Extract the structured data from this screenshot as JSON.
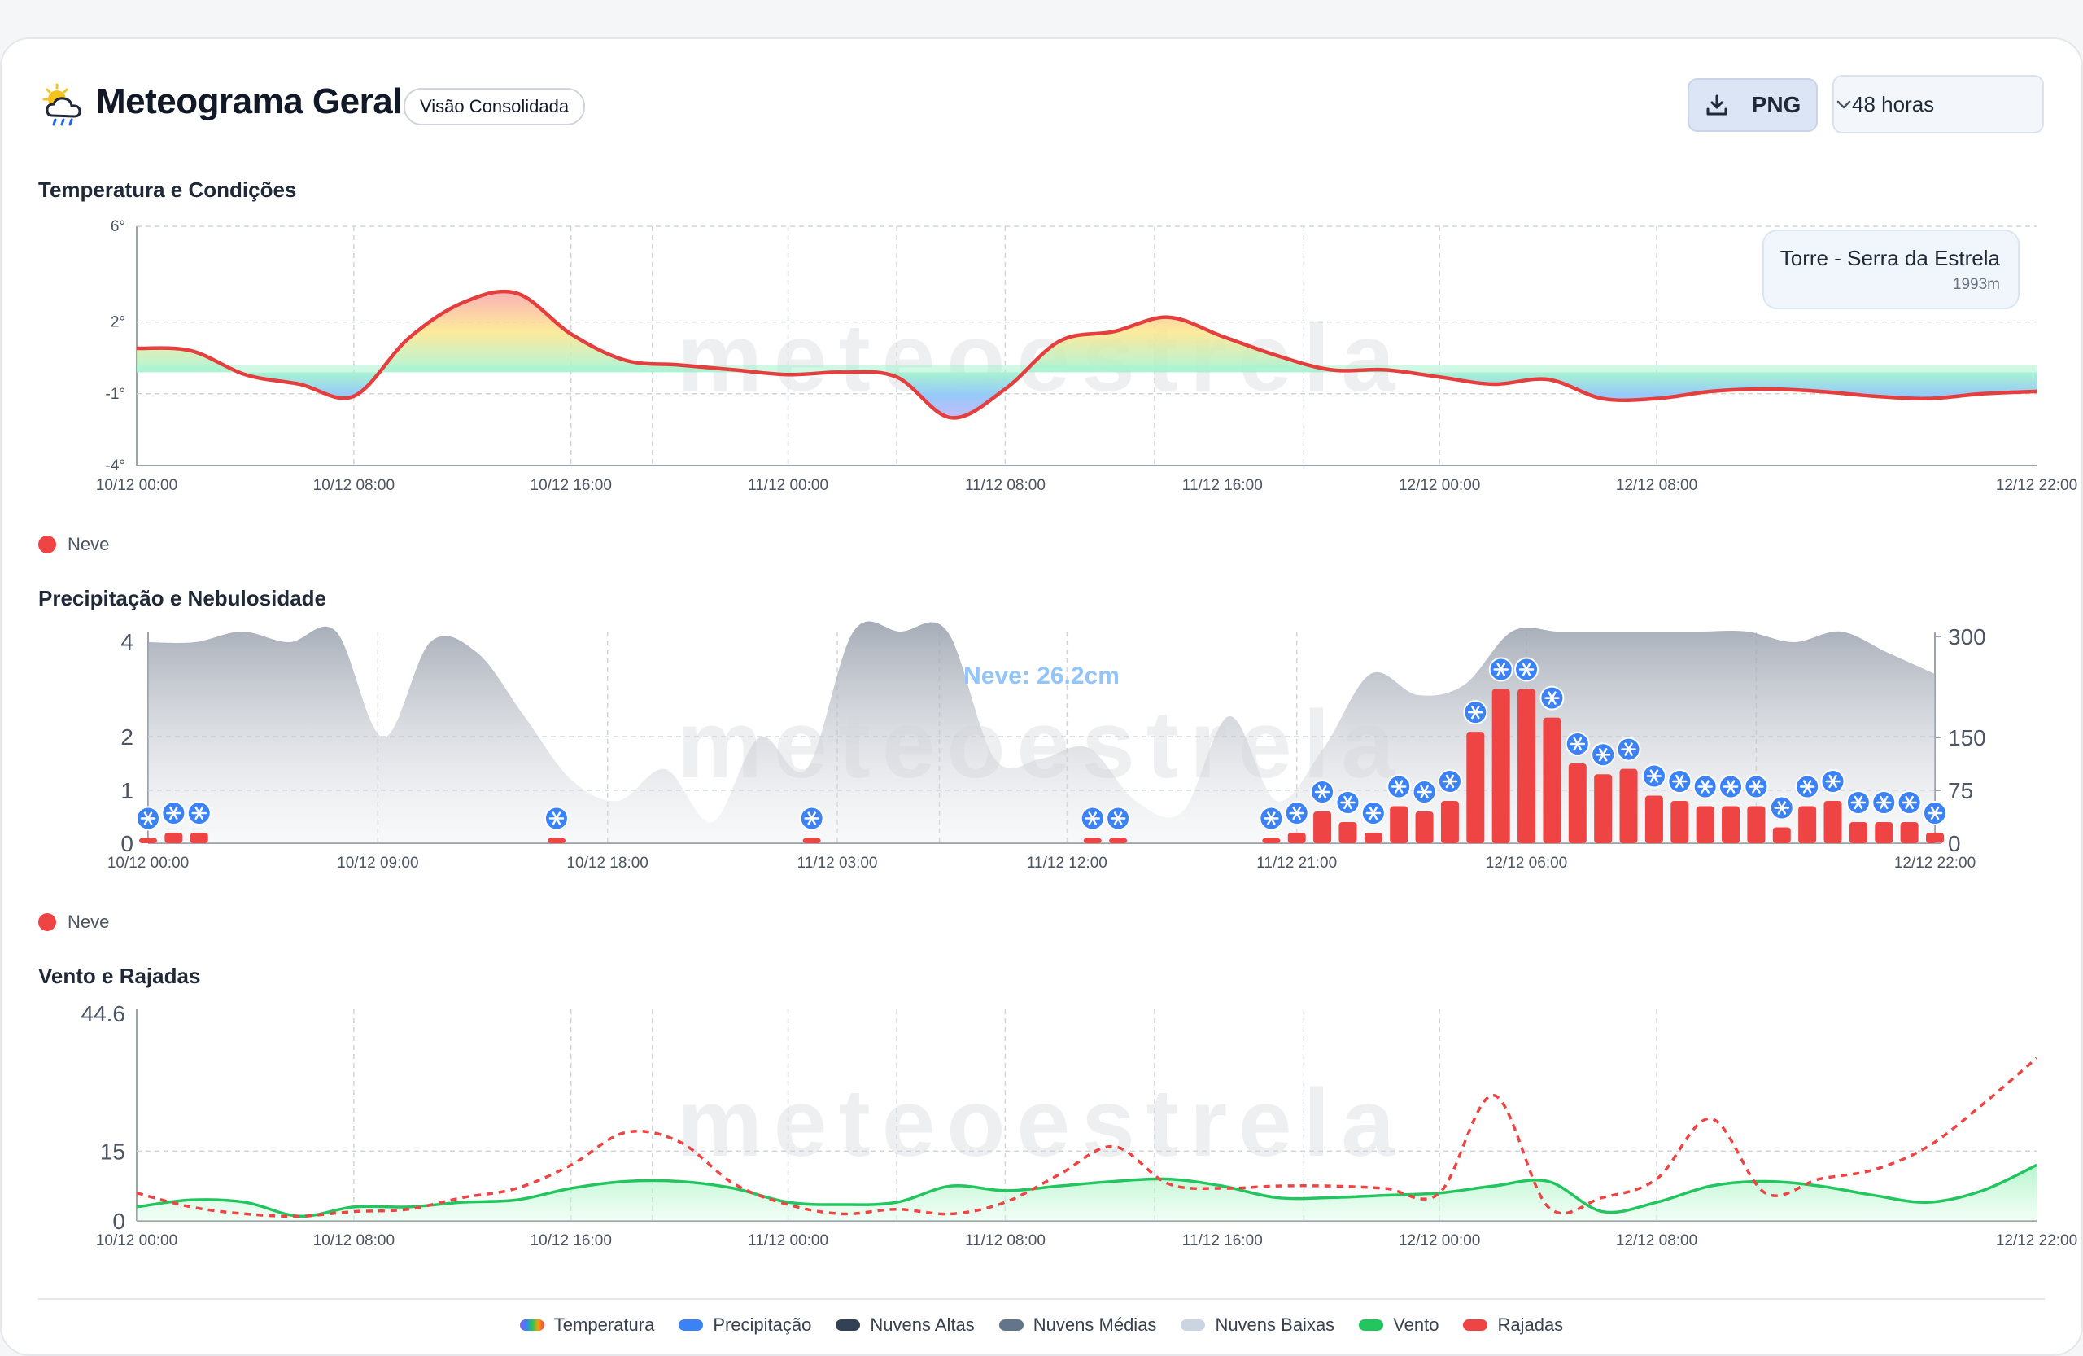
{
  "header": {
    "title": "Meteograma Geral",
    "badge": "Visão Consolidada",
    "png_label": "PNG",
    "range_select": "48 horas"
  },
  "station": {
    "name": "Torre - Serra da Estrela",
    "elevation": "1993m"
  },
  "sections": {
    "temperature": "Temperatura e Condições",
    "precipitation": "Precipitação e Nebulosidade",
    "wind": "Vento e Rajadas"
  },
  "legend_small": {
    "snow": "Neve"
  },
  "watermark": "meteoestrela",
  "snow_total": "Neve: 26.2cm",
  "colors": {
    "temperature_line": "#e53e3e",
    "snow_bar": "#ef4444",
    "snow_icon": "#3b82f6",
    "wind": "#22c55e",
    "gusts": "#ef4444",
    "clouds": "#9ca3af"
  },
  "bottom_legend": [
    {
      "label": "Temperatura",
      "icon": "rainbow-swatch"
    },
    {
      "label": "Precipitação",
      "color": "#3b82f6"
    },
    {
      "label": "Nuvens Altas",
      "color": "#334155"
    },
    {
      "label": "Nuvens Médias",
      "color": "#64748b"
    },
    {
      "label": "Nuvens Baixas",
      "color": "#cbd5e1"
    },
    {
      "label": "Vento",
      "color": "#22c55e"
    },
    {
      "label": "Rajadas",
      "color": "#ef4444"
    }
  ],
  "chart_data": [
    {
      "type": "area",
      "title": "Temperatura e Condições",
      "x_ticks": [
        "10/12 00:00",
        "10/12 08:00",
        "10/12 16:00",
        "11/12 00:00",
        "11/12 08:00",
        "11/12 16:00",
        "12/12 00:00",
        "12/12 08:00",
        "12/12 22:00"
      ],
      "y_ticks": [
        "6°",
        "2°",
        "-1°",
        "-4°"
      ],
      "ylim": [
        -4,
        6
      ],
      "hours": [
        0,
        2,
        4,
        6,
        8,
        10,
        12,
        14,
        16,
        18,
        20,
        22,
        24,
        26,
        28,
        30,
        32,
        34,
        36,
        38,
        40,
        42,
        44,
        46,
        48,
        50,
        52,
        54,
        56,
        58,
        60,
        62,
        64,
        66,
        68,
        70
      ],
      "temperature": [
        0.9,
        0.8,
        -0.2,
        -0.6,
        -1.1,
        1.3,
        2.8,
        3.2,
        1.5,
        0.4,
        0.2,
        0,
        -0.2,
        -0.1,
        -0.3,
        -2,
        -0.8,
        1.2,
        1.6,
        2.2,
        1.4,
        0.6,
        0,
        0,
        -0.3,
        -0.6,
        -0.4,
        -1.2,
        -1.2,
        -0.9,
        -0.8,
        -0.9,
        -1.1,
        -1.2,
        -1,
        -0.9
      ],
      "grid": true
    },
    {
      "type": "bar",
      "title": "Precipitação e Nebulosidade",
      "x_ticks": [
        "10/12 00:00",
        "10/12 09:00",
        "10/12 18:00",
        "11/12 03:00",
        "11/12 12:00",
        "11/12 21:00",
        "12/12 06:00",
        "12/12 22:00"
      ],
      "y_left_ticks": [
        "4",
        "2",
        "1",
        "0"
      ],
      "y_right_ticks": [
        "300",
        "150",
        "75",
        "0"
      ],
      "series": [
        {
          "name": "Neve",
          "hours": [
            0,
            1,
            2,
            16,
            26,
            37,
            38,
            44,
            45,
            46,
            47,
            48,
            49,
            50,
            51,
            52,
            53,
            54,
            55,
            56,
            57,
            58,
            59,
            60,
            61,
            62,
            63,
            64,
            65,
            66,
            67,
            68,
            69,
            70
          ],
          "values": [
            0.1,
            0.2,
            0.2,
            0.1,
            0.1,
            0.1,
            0.1,
            0.1,
            0.2,
            0.6,
            0.4,
            0.2,
            0.7,
            0.6,
            0.8,
            2.1,
            3,
            3,
            2.4,
            1.5,
            1.3,
            1.4,
            0.9,
            0.8,
            0.7,
            0.7,
            0.7,
            0.3,
            0.7,
            0.8,
            0.4,
            0.4,
            0.4,
            0.2
          ]
        }
      ],
      "cloud_cover": [
        95,
        95,
        100,
        95,
        100,
        50,
        95,
        90,
        60,
        30,
        20,
        35,
        10,
        50,
        35,
        100,
        100,
        100,
        40,
        40,
        45,
        20,
        15,
        60,
        20,
        45,
        80,
        70,
        75,
        100,
        100,
        100,
        100,
        100,
        100,
        95,
        100,
        90,
        80
      ],
      "annotation": "Neve: 26.2cm"
    },
    {
      "type": "line",
      "title": "Vento e Rajadas",
      "x_ticks": [
        "10/12 00:00",
        "10/12 08:00",
        "10/12 16:00",
        "11/12 00:00",
        "11/12 08:00",
        "11/12 16:00",
        "12/12 00:00",
        "12/12 08:00",
        "12/12 22:00"
      ],
      "y_ticks": [
        "44.6",
        "15",
        "0"
      ],
      "ylim": [
        0,
        44.6
      ],
      "hours": [
        0,
        2,
        4,
        6,
        8,
        10,
        12,
        14,
        16,
        18,
        20,
        22,
        24,
        26,
        28,
        30,
        32,
        34,
        36,
        38,
        40,
        42,
        44,
        46,
        48,
        50,
        52,
        54,
        56,
        58,
        60,
        62,
        64,
        66,
        68,
        70
      ],
      "series": [
        {
          "name": "Vento",
          "values": [
            3,
            4.5,
            4,
            1,
            3,
            3,
            4,
            4.5,
            7,
            8.5,
            8.5,
            7,
            4,
            3.5,
            4,
            7.5,
            6.5,
            7.5,
            8.5,
            9,
            7.5,
            5,
            5,
            5.5,
            6,
            7.5,
            8.5,
            2,
            4,
            7.5,
            8.5,
            7.5,
            5.5,
            4,
            6.5,
            12
          ]
        },
        {
          "name": "Rajadas",
          "values": [
            6,
            3,
            1.5,
            1,
            2,
            2.5,
            5,
            7,
            12,
            19,
            17,
            8,
            3.5,
            1.5,
            2.5,
            1.5,
            4,
            10,
            16,
            8,
            7,
            7.5,
            7.5,
            7,
            6,
            27,
            3,
            5,
            9,
            22,
            6,
            9,
            11,
            16,
            25,
            35
          ]
        }
      ]
    }
  ]
}
